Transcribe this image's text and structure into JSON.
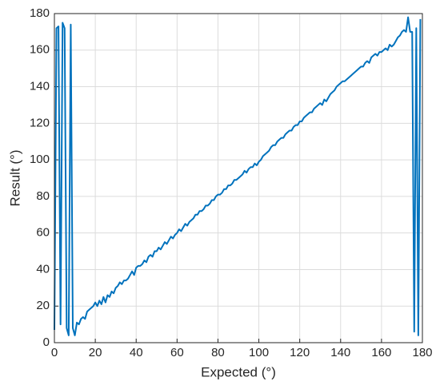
{
  "chart_data": {
    "type": "line",
    "xlabel": "Expected (°)",
    "ylabel": "Result (°)",
    "x": [
      0,
      1,
      2,
      3,
      4,
      5,
      6,
      7,
      8,
      9,
      10,
      11,
      12,
      13,
      14,
      15,
      16,
      17,
      18,
      19,
      20,
      21,
      22,
      23,
      24,
      25,
      26,
      27,
      28,
      29,
      30,
      31,
      32,
      33,
      34,
      35,
      36,
      37,
      38,
      39,
      40,
      41,
      42,
      43,
      44,
      45,
      46,
      47,
      48,
      49,
      50,
      51,
      52,
      53,
      54,
      55,
      56,
      57,
      58,
      59,
      60,
      61,
      62,
      63,
      64,
      65,
      66,
      67,
      68,
      69,
      70,
      71,
      72,
      73,
      74,
      75,
      76,
      77,
      78,
      79,
      80,
      81,
      82,
      83,
      84,
      85,
      86,
      87,
      88,
      89,
      90,
      91,
      92,
      93,
      94,
      95,
      96,
      97,
      98,
      99,
      100,
      101,
      102,
      103,
      104,
      105,
      106,
      107,
      108,
      109,
      110,
      111,
      112,
      113,
      114,
      115,
      116,
      117,
      118,
      119,
      120,
      121,
      122,
      123,
      124,
      125,
      126,
      127,
      128,
      129,
      130,
      131,
      132,
      133,
      134,
      135,
      136,
      137,
      138,
      139,
      140,
      141,
      142,
      143,
      144,
      145,
      146,
      147,
      148,
      149,
      150,
      151,
      152,
      153,
      154,
      155,
      156,
      157,
      158,
      159,
      160,
      161,
      162,
      163,
      164,
      165,
      166,
      167,
      168,
      169,
      170,
      171,
      172,
      173,
      174,
      175,
      176,
      177,
      178,
      179
    ],
    "series": [
      {
        "name": "Result",
        "color": "#0072bd",
        "values": [
          7,
          172,
          173,
          10,
          175,
          172,
          8,
          4,
          174,
          8,
          4,
          11,
          10,
          13,
          14,
          13,
          17,
          18,
          19,
          20,
          22,
          20,
          23,
          21,
          25,
          22,
          26,
          25,
          28,
          27,
          30,
          31,
          33,
          32,
          34,
          34,
          35,
          37,
          39,
          37,
          41,
          42,
          42,
          43,
          45,
          44,
          47,
          48,
          47,
          50,
          50,
          52,
          51,
          53,
          55,
          54,
          56,
          58,
          57,
          59,
          60,
          62,
          61,
          63,
          65,
          64,
          66,
          67,
          68,
          70,
          70,
          72,
          72,
          73,
          75,
          75,
          76,
          78,
          78,
          80,
          81,
          81,
          82,
          84,
          84,
          86,
          86,
          87,
          89,
          89,
          90,
          91,
          92,
          94,
          93,
          95,
          96,
          96,
          98,
          97,
          99,
          100,
          102,
          103,
          104,
          105,
          107,
          108,
          108,
          110,
          111,
          112,
          112,
          114,
          115,
          116,
          116,
          118,
          119,
          119,
          121,
          121,
          123,
          124,
          125,
          126,
          126,
          128,
          129,
          130,
          131,
          130,
          133,
          132,
          134,
          136,
          137,
          138,
          140,
          141,
          142,
          143,
          143,
          144,
          145,
          146,
          147,
          148,
          149,
          150,
          151,
          151,
          153,
          154,
          153,
          156,
          157,
          158,
          157,
          159,
          159,
          160,
          161,
          160,
          163,
          162,
          163,
          165,
          167,
          168,
          170,
          171,
          170,
          178,
          170,
          170,
          6,
          172,
          4,
          177
        ]
      }
    ],
    "xlim": [
      0,
      180
    ],
    "ylim": [
      0,
      180
    ],
    "xticks": [
      0,
      20,
      40,
      60,
      80,
      100,
      120,
      140,
      160,
      180
    ],
    "yticks": [
      0,
      20,
      40,
      60,
      80,
      100,
      120,
      140,
      160,
      180
    ],
    "grid": true
  }
}
